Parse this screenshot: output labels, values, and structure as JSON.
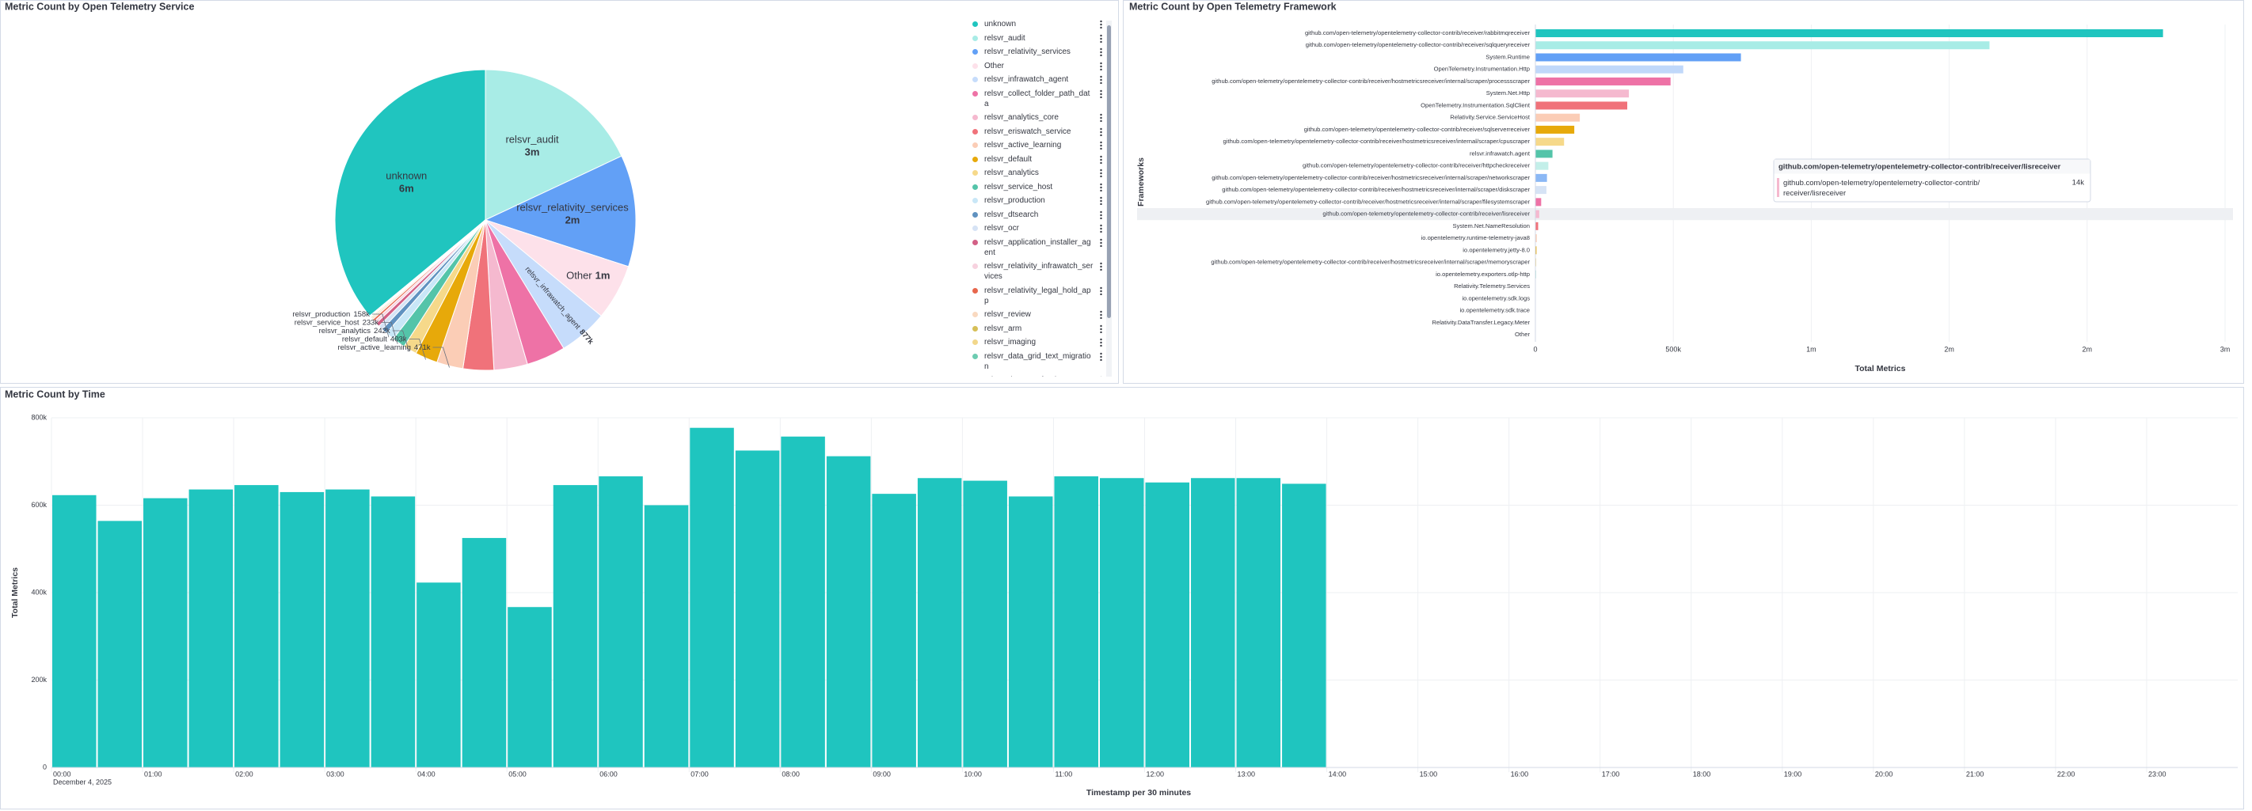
{
  "chart_data": [
    {
      "type": "pie",
      "title": "Metric Count by Open Telemetry Service",
      "categories": [
        "unknown",
        "relsvr_audit",
        "relsvr_relativity_services",
        "Other",
        "relsvr_infrawatch_agent",
        "relsvr_collect_folder_path_data",
        "relsvr_analytics_core",
        "relsvr_eriswatch_service",
        "relsvr_active_learning",
        "relsvr_default",
        "relsvr_analytics",
        "relsvr_service_host",
        "relsvr_production",
        "relsvr_dtsearch",
        "relsvr_ocr",
        "relsvr_application_installer_agent",
        "relsvr_relativity_infrawatch_services",
        "relsvr_relativity_legal_hold_app",
        "relsvr_review",
        "relsvr_arm",
        "relsvr_imaging",
        "relsvr_data_grid_text_migration",
        "relsvr_datatransfer_legacy"
      ],
      "values": [
        6000000,
        3000000,
        2000000,
        1000000,
        877000,
        700000,
        600000,
        550000,
        471000,
        403000,
        242000,
        233000,
        158000,
        100000,
        80000,
        70000,
        50000,
        40000,
        30000,
        20000,
        15000,
        10000,
        8000
      ],
      "value_labels": [
        "6m",
        "3m",
        "2m",
        "1m",
        "877k",
        null,
        null,
        null,
        "471k",
        "403k",
        "242k",
        "233k",
        "158k",
        null,
        null,
        null,
        null,
        null,
        null,
        null,
        null,
        null,
        null
      ],
      "colors": [
        "#20c5bf",
        "#a8ece6",
        "#62a0f6",
        "#fde1ea",
        "#c6dcfb",
        "#ee72a6",
        "#f5b9cf",
        "#f0727a",
        "#fbcdb6",
        "#e7a90a",
        "#f6d98a",
        "#54c4a9",
        "#c9e7f7",
        "#6092c0",
        "#d6e3f5",
        "#d36086",
        "#f7d2df",
        "#e7664c",
        "#f9d9c0",
        "#d6bf57",
        "#f2d78b",
        "#6dccb1",
        "#a8ece6"
      ]
    },
    {
      "type": "barh",
      "title": "Metric Count by Open Telemetry Framework",
      "categories": [
        "github.com/open-telemetry/opentelemetry-collector-contrib/receiver/rabbitmqreceiver",
        "github.com/open-telemetry/opentelemetry-collector-contrib/receiver/sqlqueryreceiver",
        "System.Runtime",
        "OpenTelemetry.Instrumentation.Http",
        "github.com/open-telemetry/opentelemetry-collector-contrib/receiver/hostmetricsreceiver/internal/scraper/processscraper",
        "System.Net.Http",
        "OpenTelemetry.Instrumentation.SqlClient",
        "Relativity.Service.ServiceHost",
        "github.com/open-telemetry/opentelemetry-collector-contrib/receiver/sqlserverreceiver",
        "github.com/open-telemetry/opentelemetry-collector-contrib/receiver/hostmetricsreceiver/internal/scraper/cpuscraper",
        "relsvr.infrawatch.agent",
        "github.com/open-telemetry/opentelemetry-collector-contrib/receiver/httpcheckreceiver",
        "github.com/open-telemetry/opentelemetry-collector-contrib/receiver/hostmetricsreceiver/internal/scraper/networkscraper",
        "github.com/open-telemetry/opentelemetry-collector-contrib/receiver/hostmetricsreceiver/internal/scraper/diskscraper",
        "github.com/open-telemetry/opentelemetry-collector-contrib/receiver/hostmetricsreceiver/internal/scraper/filesystemscraper",
        "github.com/open-telemetry/opentelemetry-collector-contrib/receiver/lisreceiver",
        "System.Net.NameResolution",
        "io.opentelemetry.runtime-telemetry-java8",
        "io.opentelemetry.jetty-8.0",
        "github.com/open-telemetry/opentelemetry-collector-contrib/receiver/hostmetricsreceiver/internal/scraper/memoryscraper",
        "io.opentelemetry.exporters.otlp-http",
        "Relativity.Telemetry.Services",
        "io.opentelemetry.sdk.logs",
        "io.opentelemetry.sdk.trace",
        "Relativity.DataTransfer.Legacy.Meter",
        "Other"
      ],
      "values": [
        2275000,
        1646000,
        745000,
        536000,
        490000,
        339000,
        333000,
        161000,
        141000,
        104000,
        62000,
        47000,
        42000,
        40000,
        21000,
        14000,
        10000,
        5000,
        4000,
        3000,
        2000,
        1000,
        800,
        600,
        400,
        300
      ],
      "colors": [
        "#20c5bf",
        "#a8ece6",
        "#62a0f6",
        "#c0d8fa",
        "#ee72a6",
        "#f5b9cf",
        "#f0727a",
        "#fbcdb6",
        "#e7a90a",
        "#f6d98a",
        "#54c4a9",
        "#c3efe9",
        "#8bb8f5",
        "#d6e3f5",
        "#ee72a6",
        "#f5b9cf",
        "#f0727a",
        "#fbcdb6",
        "#e7a90a",
        "#f6d98a",
        "#54c4a9",
        "#c3efe9",
        "#8bb8f5",
        "#d6e3f5",
        "#ee72a6",
        "#f5b9cf"
      ],
      "xlim": [
        0,
        2500000
      ],
      "xticks": [
        0,
        {
          "value": 500000,
          "label": "500k"
        },
        {
          "value": 1000000,
          "label": "1m"
        },
        {
          "value": 1500000,
          "label": "2m"
        },
        {
          "value": 2000000,
          "label": "2m"
        },
        {
          "value": 2500000,
          "label": "3m"
        }
      ],
      "xlabel": "Total Metrics",
      "ylabel": "Frameworks",
      "grid": true,
      "tooltip": {
        "title": "github.com/open-telemetry/opentelemetry-collector-contrib/receiver/lisreceiver",
        "label": "github.com/open-telemetry/opentelemetry-collector-contrib/receiver/lisreceiver",
        "value_label": "14k"
      }
    },
    {
      "type": "bar",
      "title": "Metric Count by Time",
      "x": [
        "2025-12-04 00:00",
        "2025-12-04 00:30",
        "2025-12-04 01:00",
        "2025-12-04 01:30",
        "2025-12-04 02:00",
        "2025-12-04 02:30",
        "2025-12-04 03:00",
        "2025-12-04 03:30",
        "2025-12-04 04:00",
        "2025-12-04 04:30",
        "2025-12-04 05:00",
        "2025-12-04 05:30",
        "2025-12-04 06:00",
        "2025-12-04 06:30",
        "2025-12-04 07:00",
        "2025-12-04 07:30",
        "2025-12-04 08:00",
        "2025-12-04 08:30",
        "2025-12-04 09:00",
        "2025-12-04 09:30",
        "2025-12-04 10:00",
        "2025-12-04 10:30",
        "2025-12-04 11:00",
        "2025-12-04 11:30",
        "2025-12-04 12:00",
        "2025-12-04 12:30",
        "2025-12-04 13:00",
        "2025-12-04 13:30"
      ],
      "values": [
        623000,
        564000,
        616000,
        636000,
        646000,
        630000,
        636000,
        620000,
        423000,
        525000,
        367000,
        646000,
        666000,
        600000,
        777000,
        725000,
        757000,
        712000,
        626000,
        662000,
        656000,
        620000,
        666000,
        662000,
        652000,
        662000,
        662000,
        649000
      ],
      "color": "#1fc5bf",
      "xlim": [
        "2025-12-04 00:00",
        "2025-12-05 00:00"
      ],
      "xticks": [
        {
          "value": "2025-12-04 00:00",
          "label": "00:00"
        },
        {
          "value": "2025-12-04 01:00",
          "label": "01:00"
        },
        {
          "value": "2025-12-04 02:00",
          "label": "02:00"
        },
        {
          "value": "2025-12-04 03:00",
          "label": "03:00"
        },
        {
          "value": "2025-12-04 04:00",
          "label": "04:00"
        },
        {
          "value": "2025-12-04 05:00",
          "label": "05:00"
        },
        {
          "value": "2025-12-04 06:00",
          "label": "06:00"
        },
        {
          "value": "2025-12-04 07:00",
          "label": "07:00"
        },
        {
          "value": "2025-12-04 08:00",
          "label": "08:00"
        },
        {
          "value": "2025-12-04 09:00",
          "label": "09:00"
        },
        {
          "value": "2025-12-04 10:00",
          "label": "10:00"
        },
        {
          "value": "2025-12-04 11:00",
          "label": "11:00"
        },
        {
          "value": "2025-12-04 12:00",
          "label": "12:00"
        },
        {
          "value": "2025-12-04 13:00",
          "label": "13:00"
        },
        {
          "value": "2025-12-04 14:00",
          "label": "14:00"
        },
        {
          "value": "2025-12-04 15:00",
          "label": "15:00"
        },
        {
          "value": "2025-12-04 16:00",
          "label": "16:00"
        },
        {
          "value": "2025-12-04 17:00",
          "label": "17:00"
        },
        {
          "value": "2025-12-04 18:00",
          "label": "18:00"
        },
        {
          "value": "2025-12-04 19:00",
          "label": "19:00"
        },
        {
          "value": "2025-12-04 20:00",
          "label": "20:00"
        },
        {
          "value": "2025-12-04 21:00",
          "label": "21:00"
        },
        {
          "value": "2025-12-04 22:00",
          "label": "22:00"
        },
        {
          "value": "2025-12-04 23:00",
          "label": "23:00"
        }
      ],
      "x_date_label": "December 4, 2025",
      "ylim": [
        0,
        800000
      ],
      "yticks": [
        0,
        {
          "value": 200000,
          "label": "200k"
        },
        {
          "value": 400000,
          "label": "400k"
        },
        {
          "value": 600000,
          "label": "600k"
        },
        {
          "value": 800000,
          "label": "800k"
        }
      ],
      "xlabel": "Timestamp per 30 minutes",
      "ylabel": "Total Metrics",
      "grid": true
    }
  ]
}
